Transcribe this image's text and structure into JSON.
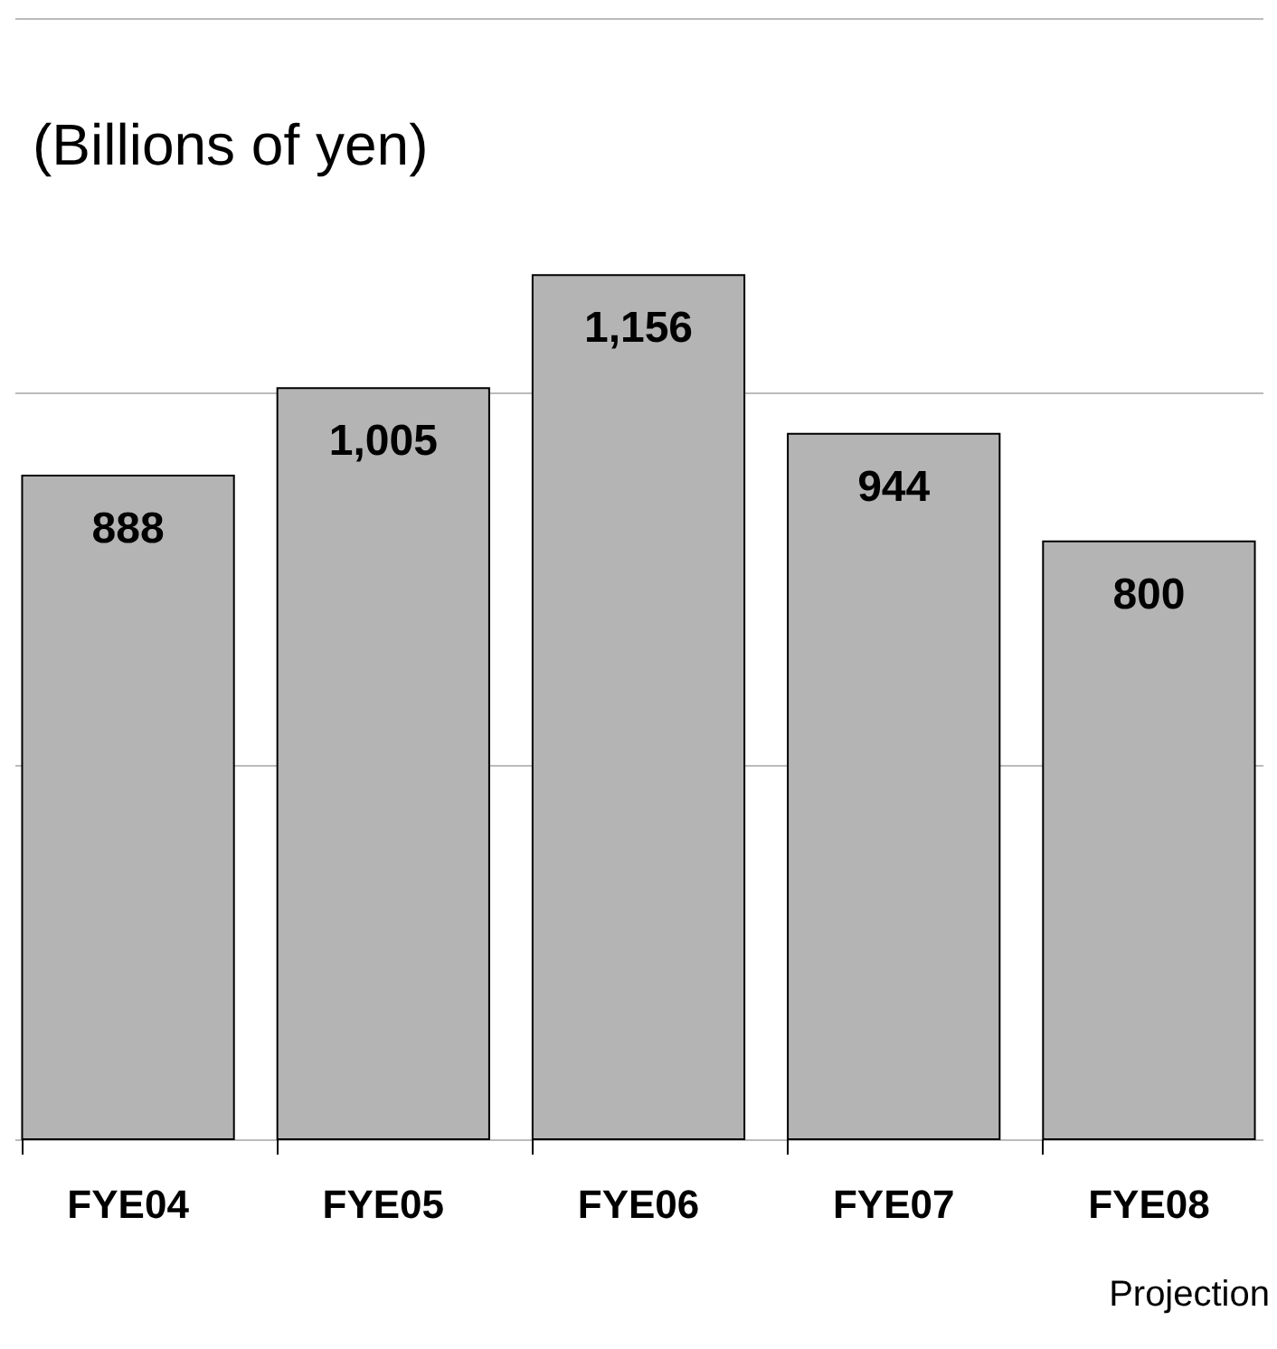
{
  "chart_data": {
    "type": "bar",
    "title": "(Billions of yen)",
    "categories": [
      "FYE04",
      "FYE05",
      "FYE06",
      "FYE07",
      "FYE08"
    ],
    "values": [
      888,
      1005,
      1156,
      944,
      800
    ],
    "value_labels": [
      "888",
      "1,005",
      "1,156",
      "944",
      "800"
    ],
    "color": "#b4b4b4",
    "ylim": [
      0,
      1500
    ],
    "yticks": [
      {
        "value": 0,
        "label": null
      },
      {
        "value": 500,
        "label": null
      },
      {
        "value": 1000,
        "label": null
      },
      {
        "value": 1500,
        "label": null
      }
    ],
    "tick_labels": "x",
    "grid": "y",
    "annotations": [
      "Projection"
    ]
  }
}
